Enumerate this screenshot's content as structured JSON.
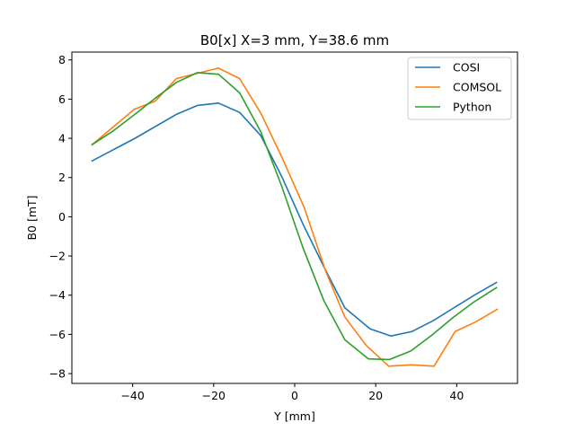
{
  "chart_data": {
    "type": "line",
    "title": "B0[x] X=3 mm, Y=38.6 mm",
    "xlabel": "Y [mm]",
    "ylabel": "B0 [mT]",
    "xlim": [
      -55,
      55
    ],
    "ylim": [
      -8.5,
      8.4
    ],
    "xticks": [
      -40,
      -20,
      0,
      20,
      40
    ],
    "xtick_labels": [
      "−40",
      "−20",
      "0",
      "20",
      "40"
    ],
    "yticks": [
      -8,
      -6,
      -4,
      -2,
      0,
      2,
      4,
      6,
      8
    ],
    "ytick_labels": [
      "−8",
      "−6",
      "−4",
      "−2",
      "0",
      "2",
      "4",
      "6",
      "8"
    ],
    "grid": false,
    "legend_position": "top-right",
    "series": [
      {
        "name": "COSI",
        "color": "#1f77b4",
        "x": [
          -50,
          -39.6,
          -29.2,
          -24,
          -18.8,
          -13.6,
          -8.4,
          -3.2,
          2,
          7.2,
          12.4,
          18.6,
          23.8,
          29,
          34.2,
          39.4,
          44.6,
          49.8
        ],
        "y": [
          2.85,
          3.98,
          5.22,
          5.68,
          5.8,
          5.32,
          4.15,
          2.05,
          -0.35,
          -2.55,
          -4.65,
          -5.72,
          -6.08,
          -5.85,
          -5.3,
          -4.63,
          -3.97,
          -3.35
        ]
      },
      {
        "name": "COMSOL",
        "color": "#ff7f0e",
        "x": [
          -50,
          -44.4,
          -39.6,
          -34.4,
          -29.2,
          -24,
          -18.8,
          -13.6,
          -8.4,
          -3.2,
          2.4,
          7.6,
          12.4,
          17.6,
          23.2,
          28.8,
          34.4,
          39.6,
          44.8,
          50
        ],
        "y": [
          3.68,
          4.65,
          5.48,
          5.9,
          7.05,
          7.32,
          7.58,
          7.05,
          5.3,
          3.05,
          0.45,
          -2.75,
          -5.12,
          -6.55,
          -7.62,
          -7.55,
          -7.62,
          -5.85,
          -5.35,
          -4.72
        ]
      },
      {
        "name": "Python",
        "color": "#2ca02c",
        "x": [
          -50,
          -44.8,
          -39.6,
          -34.4,
          -29.2,
          -24,
          -18.8,
          -13.6,
          -8.4,
          -3.2,
          2,
          7.2,
          12.4,
          18.2,
          23.4,
          28.6,
          33.8,
          39,
          44.2,
          49.8
        ],
        "y": [
          3.68,
          4.38,
          5.2,
          6.05,
          6.85,
          7.35,
          7.27,
          6.32,
          4.35,
          1.55,
          -1.55,
          -4.28,
          -6.28,
          -7.25,
          -7.28,
          -6.85,
          -6.05,
          -5.15,
          -4.35,
          -3.62
        ]
      }
    ]
  }
}
